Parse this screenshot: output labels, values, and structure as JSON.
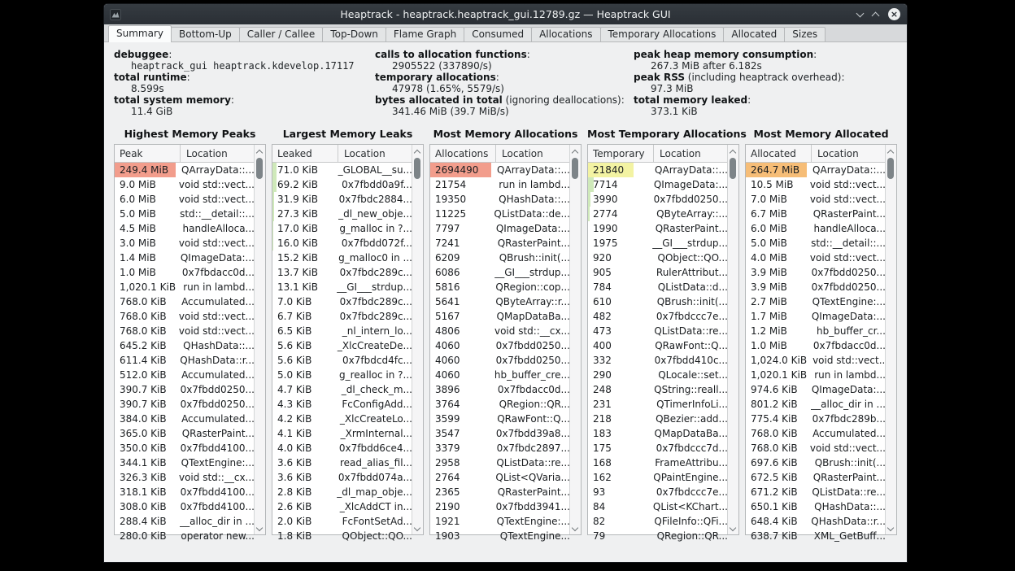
{
  "window": {
    "title": "Heaptrack - heaptrack.heaptrack_gui.12789.gz — Heaptrack GUI",
    "controls": {
      "minimize": "chevron-down",
      "maximize": "chevron-up",
      "close": "×"
    }
  },
  "tabs": [
    {
      "label": "Summary",
      "active": true
    },
    {
      "label": "Bottom-Up",
      "active": false
    },
    {
      "label": "Caller / Callee",
      "active": false
    },
    {
      "label": "Top-Down",
      "active": false
    },
    {
      "label": "Flame Graph",
      "active": false
    },
    {
      "label": "Consumed",
      "active": false
    },
    {
      "label": "Allocations",
      "active": false
    },
    {
      "label": "Temporary Allocations",
      "active": false
    },
    {
      "label": "Allocated",
      "active": false
    },
    {
      "label": "Sizes",
      "active": false
    }
  ],
  "summary": {
    "columns": [
      {
        "items": [
          {
            "label": "debuggee",
            "note": ":",
            "value": "heaptrack_gui heaptrack.kdevelop.17117",
            "mono": true
          },
          {
            "label": "total runtime",
            "note": ":",
            "value": "8.599s"
          },
          {
            "label": "total system memory",
            "note": ":",
            "value": "11.4 GiB"
          }
        ]
      },
      {
        "items": [
          {
            "label": "calls to allocation functions",
            "note": ":",
            "value": "2905522 (337890/s)"
          },
          {
            "label": "temporary allocations",
            "note": ":",
            "value": "47978 (1.65%, 5579/s)"
          },
          {
            "label": "bytes allocated in total",
            "note": " (ignoring deallocations):",
            "value": "341.46 MiB (39.7 MiB/s)"
          }
        ]
      },
      {
        "items": [
          {
            "label": "peak heap memory consumption",
            "note": ":",
            "value": "267.3 MiB after 6.182s"
          },
          {
            "label": "peak RSS",
            "note": " (including heaptrack overhead):",
            "value": "97.3 MiB"
          },
          {
            "label": "total memory leaked",
            "note": ":",
            "value": "373.1 KiB"
          }
        ]
      }
    ]
  },
  "colors": {
    "salmon": "#f29d8c",
    "orange": "#f6bd77",
    "yellow": "#f3f3a3",
    "green": "#cfe9ba"
  },
  "panels": [
    {
      "title": "Highest Memory Peaks",
      "value_header": "Peak",
      "location_header": "Location",
      "rows": [
        {
          "v": "249.4 MiB",
          "l": "QArrayData::...",
          "h": "salmon",
          "w": "full"
        },
        {
          "v": "9.0 MiB",
          "l": "void std::vect..."
        },
        {
          "v": "6.0 MiB",
          "l": "void std::vect..."
        },
        {
          "v": "5.0 MiB",
          "l": "std::__detail::..."
        },
        {
          "v": "4.5 MiB",
          "l": "handleAlloca..."
        },
        {
          "v": "3.0 MiB",
          "l": "void std::vect..."
        },
        {
          "v": "1.4 MiB",
          "l": "QImageData:..."
        },
        {
          "v": "1.0 MiB",
          "l": "0x7fbdacc0d..."
        },
        {
          "v": "1,020.1 KiB",
          "l": "run in lambd..."
        },
        {
          "v": "768.0 KiB",
          "l": "Accumulated..."
        },
        {
          "v": "768.0 KiB",
          "l": "void std::vect..."
        },
        {
          "v": "768.0 KiB",
          "l": "void std::vect..."
        },
        {
          "v": "645.2 KiB",
          "l": "QHashData::..."
        },
        {
          "v": "611.4 KiB",
          "l": "QHashData::r..."
        },
        {
          "v": "512.0 KiB",
          "l": "Accumulated..."
        },
        {
          "v": "390.7 KiB",
          "l": "0x7fbdd0250..."
        },
        {
          "v": "390.7 KiB",
          "l": "0x7fbdd0250..."
        },
        {
          "v": "384.0 KiB",
          "l": "Accumulated..."
        },
        {
          "v": "365.0 KiB",
          "l": "QRasterPaint..."
        },
        {
          "v": "350.0 KiB",
          "l": "0x7fbdd4100..."
        },
        {
          "v": "344.1 KiB",
          "l": "QTextEngine:..."
        },
        {
          "v": "326.3 KiB",
          "l": "void std::__cx..."
        },
        {
          "v": "318.1 KiB",
          "l": "0x7fbdd4100..."
        },
        {
          "v": "308.0 KiB",
          "l": "0x7fbdd4100..."
        },
        {
          "v": "288.4 KiB",
          "l": "__alloc_dir in ..."
        },
        {
          "v": "280.0 KiB",
          "l": "operator new..."
        }
      ]
    },
    {
      "title": "Largest Memory Leaks",
      "value_header": "Leaked",
      "location_header": "Location",
      "rows": [
        {
          "v": "71.0 KiB",
          "l": "_GLOBAL__su...",
          "h": "green",
          "w": 5
        },
        {
          "v": "69.2 KiB",
          "l": "0x7fbdd0a9f...",
          "h": "green",
          "w": 5
        },
        {
          "v": "31.9 KiB",
          "l": "0x7fbdc2884...",
          "h": "green",
          "w": 2
        },
        {
          "v": "27.3 KiB",
          "l": "_dl_new_obje...",
          "h": "green",
          "w": 2
        },
        {
          "v": "17.0 KiB",
          "l": "g_malloc in ?...",
          "h": "green",
          "w": 1
        },
        {
          "v": "16.0 KiB",
          "l": "0x7fbdd072f...",
          "h": "green",
          "w": 1
        },
        {
          "v": "15.2 KiB",
          "l": "g_malloc0 in ..."
        },
        {
          "v": "13.7 KiB",
          "l": "0x7fbdc289c..."
        },
        {
          "v": "13.1 KiB",
          "l": "__GI___strdup..."
        },
        {
          "v": "7.0 KiB",
          "l": "0x7fbdc289c..."
        },
        {
          "v": "6.7 KiB",
          "l": "0x7fbdc289c..."
        },
        {
          "v": "6.5 KiB",
          "l": "_nl_intern_lo..."
        },
        {
          "v": "5.6 KiB",
          "l": "_XlcCreateDe..."
        },
        {
          "v": "5.6 KiB",
          "l": "0x7fbdcd4fc..."
        },
        {
          "v": "5.0 KiB",
          "l": "g_realloc in ?..."
        },
        {
          "v": "4.7 KiB",
          "l": "_dl_check_m..."
        },
        {
          "v": "4.3 KiB",
          "l": "FcConfigAdd..."
        },
        {
          "v": "4.2 KiB",
          "l": "_XlcCreateLo..."
        },
        {
          "v": "4.1 KiB",
          "l": "_XrmInternal..."
        },
        {
          "v": "4.0 KiB",
          "l": "0x7fbdd6ce4..."
        },
        {
          "v": "3.6 KiB",
          "l": "read_alias_fil..."
        },
        {
          "v": "3.6 KiB",
          "l": "0x7fbdd074a..."
        },
        {
          "v": "2.8 KiB",
          "l": "_dl_map_obje..."
        },
        {
          "v": "2.6 KiB",
          "l": "_XlcAddCT in..."
        },
        {
          "v": "2.0 KiB",
          "l": "FcFontSetAd..."
        },
        {
          "v": "1.8 KiB",
          "l": "QObject::QO..."
        }
      ]
    },
    {
      "title": "Most Memory Allocations",
      "value_header": "Allocations",
      "location_header": "Location",
      "rows": [
        {
          "v": "2694490",
          "l": "QArrayData::...",
          "h": "salmon",
          "w": "full"
        },
        {
          "v": "21754",
          "l": "run in lambd..."
        },
        {
          "v": "19350",
          "l": "QHashData::..."
        },
        {
          "v": "11225",
          "l": "QListData::de..."
        },
        {
          "v": "7797",
          "l": "QImageData:..."
        },
        {
          "v": "7241",
          "l": "QRasterPaint..."
        },
        {
          "v": "6209",
          "l": "QBrush::init(..."
        },
        {
          "v": "6086",
          "l": "__GI___strdup..."
        },
        {
          "v": "5816",
          "l": "QRegion::cop..."
        },
        {
          "v": "5641",
          "l": "QByteArray::r..."
        },
        {
          "v": "5167",
          "l": "QMapDataBa..."
        },
        {
          "v": "4806",
          "l": "void std::__cx..."
        },
        {
          "v": "4060",
          "l": "0x7fbdd0250..."
        },
        {
          "v": "4060",
          "l": "0x7fbdd0250..."
        },
        {
          "v": "4060",
          "l": "hb_buffer_cre..."
        },
        {
          "v": "3896",
          "l": "0x7fbdacc0d..."
        },
        {
          "v": "3764",
          "l": "QRegion::QR..."
        },
        {
          "v": "3599",
          "l": "QRawFont::Q..."
        },
        {
          "v": "3547",
          "l": "0x7fbdd39a8..."
        },
        {
          "v": "3379",
          "l": "0x7fbdc2897..."
        },
        {
          "v": "2958",
          "l": "QListData::re..."
        },
        {
          "v": "2764",
          "l": "QList<QVaria..."
        },
        {
          "v": "2365",
          "l": "QRasterPaint..."
        },
        {
          "v": "2190",
          "l": "0x7fbdd3941..."
        },
        {
          "v": "1921",
          "l": "QTextEngine:..."
        },
        {
          "v": "1903",
          "l": "QTextEngine..."
        }
      ]
    },
    {
      "title": "Most Temporary Allocations",
      "value_header": "Temporary",
      "location_header": "Location",
      "rows": [
        {
          "v": "21840",
          "l": "QArrayData::...",
          "h": "yellow",
          "w": 56
        },
        {
          "v": "7714",
          "l": "QImageData:...",
          "h": "green",
          "w": 7
        },
        {
          "v": "3990",
          "l": "0x7fbdd0250...",
          "h": "green",
          "w": 3
        },
        {
          "v": "2774",
          "l": "QByteArray::...",
          "h": "green",
          "w": 2
        },
        {
          "v": "1990",
          "l": "QRasterPaint..."
        },
        {
          "v": "1975",
          "l": "__GI___strdup..."
        },
        {
          "v": "920",
          "l": "QObject::QO..."
        },
        {
          "v": "905",
          "l": "RulerAttribut..."
        },
        {
          "v": "784",
          "l": "QListData::d..."
        },
        {
          "v": "610",
          "l": "QBrush::init(..."
        },
        {
          "v": "482",
          "l": "0x7fbdccc7e..."
        },
        {
          "v": "473",
          "l": "QListData::re..."
        },
        {
          "v": "400",
          "l": "QRawFont::Q..."
        },
        {
          "v": "332",
          "l": "0x7fbdd410c..."
        },
        {
          "v": "290",
          "l": "QLocale::set..."
        },
        {
          "v": "248",
          "l": "QString::reall..."
        },
        {
          "v": "231",
          "l": "QTimerInfoLi..."
        },
        {
          "v": "218",
          "l": "QBezier::add..."
        },
        {
          "v": "183",
          "l": "QMapDataBa..."
        },
        {
          "v": "175",
          "l": "0x7fbdccc7d..."
        },
        {
          "v": "168",
          "l": "FrameAttribu..."
        },
        {
          "v": "162",
          "l": "QPaintEngine..."
        },
        {
          "v": "93",
          "l": "0x7fbdccc7e..."
        },
        {
          "v": "84",
          "l": "QList<KChart..."
        },
        {
          "v": "82",
          "l": "QFileInfo::QFi..."
        },
        {
          "v": "79",
          "l": "QRegion::QR..."
        }
      ]
    },
    {
      "title": "Most Memory Allocated",
      "value_header": "Allocated",
      "location_header": "Location",
      "rows": [
        {
          "v": "264.7 MiB",
          "l": "QArrayData::...",
          "h": "orange",
          "w": "full"
        },
        {
          "v": "10.5 MiB",
          "l": "void std::vect..."
        },
        {
          "v": "7.0 MiB",
          "l": "void std::vect..."
        },
        {
          "v": "6.7 MiB",
          "l": "QRasterPaint..."
        },
        {
          "v": "6.0 MiB",
          "l": "handleAlloca..."
        },
        {
          "v": "5.0 MiB",
          "l": "std::__detail::..."
        },
        {
          "v": "4.0 MiB",
          "l": "void std::vect..."
        },
        {
          "v": "3.9 MiB",
          "l": "0x7fbdd0250..."
        },
        {
          "v": "3.9 MiB",
          "l": "0x7fbdd0250..."
        },
        {
          "v": "2.7 MiB",
          "l": "QTextEngine:..."
        },
        {
          "v": "1.7 MiB",
          "l": "QImageData:..."
        },
        {
          "v": "1.2 MiB",
          "l": "hb_buffer_cr..."
        },
        {
          "v": "1.0 MiB",
          "l": "0x7fbdacc0d..."
        },
        {
          "v": "1,024.0 KiB",
          "l": "void std::vect..."
        },
        {
          "v": "1,020.1 KiB",
          "l": "run in lambd..."
        },
        {
          "v": "974.6 KiB",
          "l": "QImageData:..."
        },
        {
          "v": "801.2 KiB",
          "l": "__alloc_dir in ..."
        },
        {
          "v": "775.4 KiB",
          "l": "0x7fbdc289b..."
        },
        {
          "v": "768.0 KiB",
          "l": "Accumulated..."
        },
        {
          "v": "768.0 KiB",
          "l": "void std::vect..."
        },
        {
          "v": "697.6 KiB",
          "l": "QBrush::init(..."
        },
        {
          "v": "672.5 KiB",
          "l": "QRasterPaint..."
        },
        {
          "v": "671.2 KiB",
          "l": "QListData::re..."
        },
        {
          "v": "650.1 KiB",
          "l": "QHashData::..."
        },
        {
          "v": "648.4 KiB",
          "l": "QHashData::r..."
        },
        {
          "v": "638.7 KiB",
          "l": "XML_GetBuff..."
        }
      ]
    }
  ]
}
